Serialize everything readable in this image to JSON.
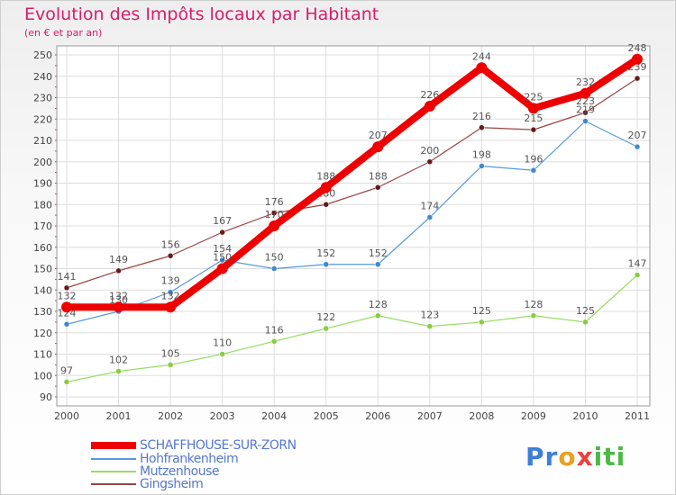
{
  "chart_data": {
    "type": "line",
    "title": "Evolution des Impôts locaux par Habitant",
    "subtitle": "(en € et par an)",
    "x": [
      "2000",
      "2001",
      "2002",
      "2003",
      "2004",
      "2005",
      "2006",
      "2007",
      "2008",
      "2009",
      "2010",
      "2011"
    ],
    "ylim": [
      90,
      250
    ],
    "yticks": [
      90,
      100,
      110,
      120,
      130,
      140,
      150,
      160,
      170,
      180,
      190,
      200,
      210,
      220,
      230,
      240,
      250
    ],
    "grid": true,
    "legend_position": "bottom-left",
    "series": [
      {
        "name": "SCHAFFHOUSE-SUR-ZORN",
        "color": "#ee0000",
        "thick": true,
        "values": [
          132,
          132,
          132,
          150,
          170,
          188,
          207,
          226,
          244,
          225,
          232,
          248
        ]
      },
      {
        "name": "Hohfrankenheim",
        "color": "#5599dd",
        "point": "#4488cc",
        "thick": false,
        "values": [
          124,
          130,
          139,
          154,
          150,
          152,
          152,
          174,
          198,
          196,
          219,
          207
        ]
      },
      {
        "name": "Mutzenhouse",
        "color": "#99dd66",
        "point": "#88cc44",
        "thick": false,
        "values": [
          97,
          102,
          105,
          110,
          116,
          122,
          128,
          123,
          125,
          128,
          125,
          147
        ]
      },
      {
        "name": "Gingsheim",
        "color": "#994444",
        "point": "#661a1a",
        "thick": false,
        "values": [
          141,
          149,
          156,
          167,
          176,
          180,
          188,
          200,
          216,
          215,
          223,
          239
        ]
      }
    ]
  },
  "logo": {
    "letters": [
      "Pr",
      "o",
      "x",
      "iti"
    ]
  }
}
